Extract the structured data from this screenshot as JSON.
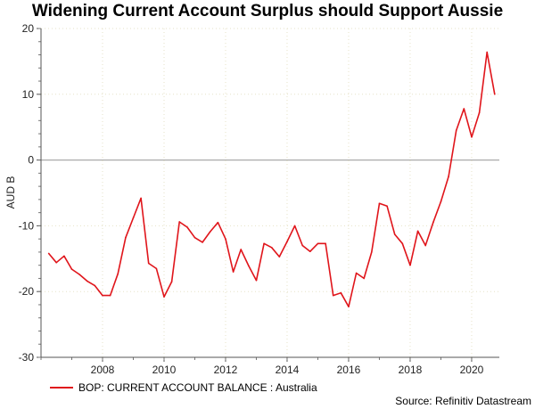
{
  "chart_data": {
    "type": "line",
    "title": "Widening Current Account Surplus should Support Aussie",
    "xlabel": "",
    "ylabel": "AUD B",
    "xlim": [
      2006,
      2020.9
    ],
    "ylim": [
      -30,
      20
    ],
    "xticks": [
      2008,
      2010,
      2012,
      2014,
      2016,
      2018,
      2020
    ],
    "yticks": [
      -30,
      -20,
      -10,
      0,
      10,
      20
    ],
    "grid": true,
    "legend_placement": "bottom-left",
    "series": [
      {
        "name": "BOP: CURRENT ACCOUNT BALANCE : Australia",
        "color": "#e0151b",
        "x": [
          2006.25,
          2006.5,
          2006.75,
          2007.0,
          2007.25,
          2007.5,
          2007.75,
          2008.0,
          2008.25,
          2008.5,
          2008.75,
          2009.0,
          2009.25,
          2009.5,
          2009.75,
          2010.0,
          2010.25,
          2010.5,
          2010.75,
          2011.0,
          2011.25,
          2011.5,
          2011.75,
          2012.0,
          2012.25,
          2012.5,
          2012.75,
          2013.0,
          2013.25,
          2013.5,
          2013.75,
          2014.0,
          2014.25,
          2014.5,
          2014.75,
          2015.0,
          2015.25,
          2015.5,
          2015.75,
          2016.0,
          2016.25,
          2016.5,
          2016.75,
          2017.0,
          2017.25,
          2017.5,
          2017.75,
          2018.0,
          2018.25,
          2018.5,
          2018.75,
          2019.0,
          2019.25,
          2019.5,
          2019.75,
          2020.0,
          2020.25,
          2020.5,
          2020.75
        ],
        "values": [
          -14.2,
          -15.6,
          -14.6,
          -16.6,
          -17.4,
          -18.4,
          -19.1,
          -20.6,
          -20.6,
          -17.3,
          -11.8,
          -8.8,
          -5.8,
          -15.7,
          -16.5,
          -20.8,
          -18.5,
          -9.4,
          -10.2,
          -11.8,
          -12.5,
          -10.9,
          -9.5,
          -12.0,
          -17.0,
          -13.6,
          -16.1,
          -18.3,
          -12.7,
          -13.3,
          -14.7,
          -12.4,
          -10.0,
          -13.0,
          -13.9,
          -12.7,
          -12.7,
          -20.6,
          -20.2,
          -22.3,
          -17.2,
          -18.0,
          -14.0,
          -6.6,
          -7.0,
          -11.3,
          -12.7,
          -16.0,
          -10.8,
          -13.0,
          -9.5,
          -6.3,
          -2.5,
          4.5,
          7.8,
          3.5,
          7.2,
          16.4,
          10.0
        ]
      }
    ],
    "source": "Source: Refinitiv Datastream"
  }
}
